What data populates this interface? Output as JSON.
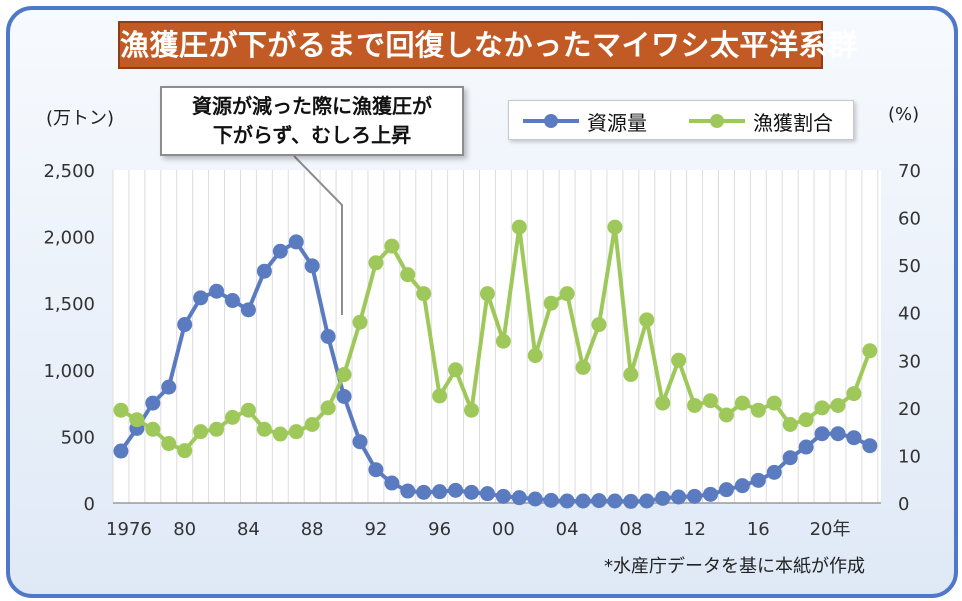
{
  "chart_data": {
    "type": "line",
    "title": "漁獲圧が下がるまで回復しなかったマイワシ太平洋系群",
    "y_unit_left": "(万トン)",
    "y_unit_right": "(%)",
    "left_axis": {
      "ylim": [
        0,
        2500
      ],
      "ticks": [
        "0",
        "500",
        "1,000",
        "1,500",
        "2,000",
        "2,500"
      ]
    },
    "right_axis": {
      "ylim": [
        0,
        70
      ],
      "ticks": [
        "0",
        "10",
        "20",
        "30",
        "40",
        "50",
        "60",
        "70"
      ]
    },
    "x_tick_labels": [
      "1976",
      "80",
      "84",
      "88",
      "92",
      "96",
      "00",
      "04",
      "08",
      "12",
      "16",
      "20年"
    ],
    "grid": "vertical",
    "legend_position": "top-right",
    "x": [
      1976,
      1977,
      1978,
      1979,
      1980,
      1981,
      1982,
      1983,
      1984,
      1985,
      1986,
      1987,
      1988,
      1989,
      1990,
      1991,
      1992,
      1993,
      1994,
      1995,
      1996,
      1997,
      1998,
      1999,
      2000,
      2001,
      2002,
      2003,
      2004,
      2005,
      2006,
      2007,
      2008,
      2009,
      2010,
      2011,
      2012,
      2013,
      2014,
      2015,
      2016,
      2017,
      2018,
      2019,
      2020,
      2021,
      2022,
      2023
    ],
    "series": [
      {
        "name": "資源量",
        "axis": "left",
        "color": "#5b7bc0",
        "values": [
          390,
          560,
          750,
          870,
          1340,
          1540,
          1590,
          1520,
          1450,
          1740,
          1890,
          1960,
          1780,
          1250,
          800,
          460,
          250,
          150,
          90,
          80,
          85,
          95,
          80,
          70,
          50,
          40,
          30,
          20,
          15,
          15,
          18,
          15,
          12,
          15,
          35,
          45,
          50,
          65,
          100,
          130,
          170,
          230,
          340,
          420,
          520,
          520,
          490,
          430
        ]
      },
      {
        "name": "漁獲割合",
        "axis": "right",
        "color": "#9ec95a",
        "values": [
          19.5,
          17.5,
          15.5,
          12.5,
          11,
          15,
          15.5,
          18,
          19.5,
          15.5,
          14.5,
          15,
          16.5,
          20,
          27,
          38,
          50.5,
          54,
          48,
          44,
          22.5,
          28,
          19.5,
          44,
          34,
          58,
          31,
          42,
          44,
          28.5,
          37.5,
          58,
          27,
          38.5,
          21,
          30,
          20.5,
          21.5,
          18.5,
          21,
          19.5,
          21,
          16.5,
          17.5,
          20,
          20.5,
          23,
          32
        ]
      }
    ],
    "annotation": [
      "資源が減った際に漁獲圧が",
      "下がらず、むしろ上昇"
    ]
  },
  "source_note": "*水産庁データを基に本紙が作成",
  "colors": {
    "frame": "#4f78c8",
    "title_bg": "#c15a25",
    "stock": "#5b7bc0",
    "catch_rate": "#9ec95a"
  }
}
